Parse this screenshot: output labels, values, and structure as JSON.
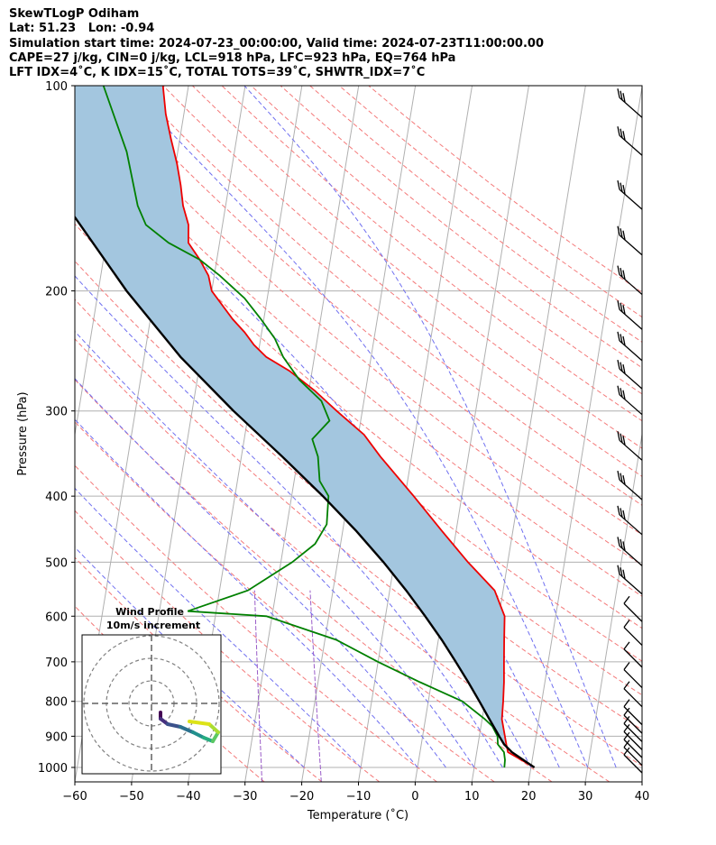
{
  "header": {
    "line1": "SkewTLogP Odiham",
    "line2": "Lat: 51.23   Lon: -0.94",
    "line3": "Simulation start time: 2024-07-23_00:00:00, Valid time: 2024-07-23T11:00:00.00",
    "line4": "CAPE=27 j/kg, CIN=0 j/kg, LCL=918 hPa, LFC=923 hPa, EQ=764 hPa",
    "line5": "LFT IDX=4˚C, K IDX=15˚C, TOTAL TOTS=39˚C, SHWTR_IDX=7˚C"
  },
  "chart_data": {
    "type": "skewt-logp",
    "xlabel": "Temperature (˚C)",
    "ylabel": "Pressure (hPa)",
    "xlim": [
      -60,
      40
    ],
    "ylim": [
      1050,
      100
    ],
    "x_ticks": [
      "−60",
      "−50",
      "−40",
      "−30",
      "−20",
      "−10",
      "0",
      "10",
      "20",
      "30",
      "40"
    ],
    "y_ticks": [
      "1000",
      "900",
      "800",
      "700",
      "600",
      "500",
      "400",
      "300",
      "200",
      "100"
    ],
    "grid": true,
    "colors": {
      "temperature": "#ee0000",
      "dewpoint": "#008000",
      "parcel": "#000000",
      "cape_fill": "#a3c6df",
      "isotherm": "#b0b0b0",
      "dry_adiabat": "#f47a7a",
      "moist_adiabat": "#6f6ff0",
      "mixing_ratio": "#9a5cc8"
    },
    "series": [
      {
        "key": "temperature",
        "points": [
          [
            1000,
            20.6
          ],
          [
            950,
            15.5
          ],
          [
            925,
            15.0
          ],
          [
            900,
            14.5
          ],
          [
            850,
            13.5
          ],
          [
            800,
            13.2
          ],
          [
            750,
            12.8
          ],
          [
            700,
            12.2
          ],
          [
            650,
            11.6
          ],
          [
            600,
            11.0
          ],
          [
            550,
            8.5
          ],
          [
            500,
            3.0
          ],
          [
            450,
            -2.5
          ],
          [
            400,
            -8.5
          ],
          [
            350,
            -15.5
          ],
          [
            325,
            -19.0
          ],
          [
            300,
            -24.5
          ],
          [
            280,
            -29.0
          ],
          [
            262,
            -34.0
          ],
          [
            250,
            -38.5
          ],
          [
            240,
            -41.0
          ],
          [
            230,
            -43.0
          ],
          [
            220,
            -45.5
          ],
          [
            200,
            -50.0
          ],
          [
            190,
            -51.0
          ],
          [
            180,
            -53.0
          ],
          [
            170,
            -55.5
          ],
          [
            160,
            -56.0
          ],
          [
            150,
            -57.5
          ],
          [
            140,
            -58.5
          ],
          [
            130,
            -59.8
          ],
          [
            120,
            -61.5
          ],
          [
            110,
            -63.2
          ],
          [
            100,
            -64.5
          ]
        ]
      },
      {
        "key": "dewpoint",
        "points": [
          [
            1000,
            15.3
          ],
          [
            975,
            15.2
          ],
          [
            950,
            14.8
          ],
          [
            925,
            13.5
          ],
          [
            900,
            13.2
          ],
          [
            870,
            12.0
          ],
          [
            850,
            10.5
          ],
          [
            800,
            6.0
          ],
          [
            750,
            -2.0
          ],
          [
            700,
            -10.0
          ],
          [
            650,
            -18.0
          ],
          [
            600,
            -31.0
          ],
          [
            590,
            -45.0
          ],
          [
            550,
            -35.0
          ],
          [
            500,
            -28.0
          ],
          [
            470,
            -24.5
          ],
          [
            440,
            -23.0
          ],
          [
            400,
            -23.5
          ],
          [
            380,
            -25.5
          ],
          [
            350,
            -26.5
          ],
          [
            330,
            -28.0
          ],
          [
            310,
            -25.5
          ],
          [
            290,
            -27.5
          ],
          [
            270,
            -32.0
          ],
          [
            250,
            -35.5
          ],
          [
            235,
            -37.5
          ],
          [
            220,
            -40.5
          ],
          [
            205,
            -44.0
          ],
          [
            190,
            -49.0
          ],
          [
            180,
            -53.0
          ],
          [
            170,
            -59.0
          ],
          [
            160,
            -63.5
          ],
          [
            150,
            -65.5
          ],
          [
            125,
            -69.0
          ],
          [
            100,
            -75.0
          ]
        ]
      },
      {
        "key": "parcel",
        "points": [
          [
            1000,
            20.6
          ],
          [
            950,
            16.2
          ],
          [
            925,
            14.6
          ],
          [
            900,
            13.5
          ],
          [
            850,
            11.3
          ],
          [
            800,
            9.0
          ],
          [
            750,
            6.5
          ],
          [
            700,
            3.7
          ],
          [
            650,
            0.6
          ],
          [
            600,
            -3.0
          ],
          [
            550,
            -7.1
          ],
          [
            500,
            -11.9
          ],
          [
            450,
            -17.6
          ],
          [
            400,
            -24.5
          ],
          [
            350,
            -32.8
          ],
          [
            300,
            -42.7
          ],
          [
            250,
            -53.6
          ],
          [
            200,
            -65.0
          ],
          [
            150,
            -78.0
          ],
          [
            100,
            -92.0
          ]
        ]
      }
    ],
    "wind_barbs_levels": [
      1000,
      975,
      950,
      925,
      900,
      875,
      850,
      800,
      750,
      700,
      650,
      600,
      550,
      500,
      450,
      400,
      350,
      300,
      275,
      250,
      225,
      200,
      175,
      150,
      125,
      110
    ],
    "inset": {
      "title": "Wind Profile",
      "subtitle": "10m/s increment"
    }
  }
}
